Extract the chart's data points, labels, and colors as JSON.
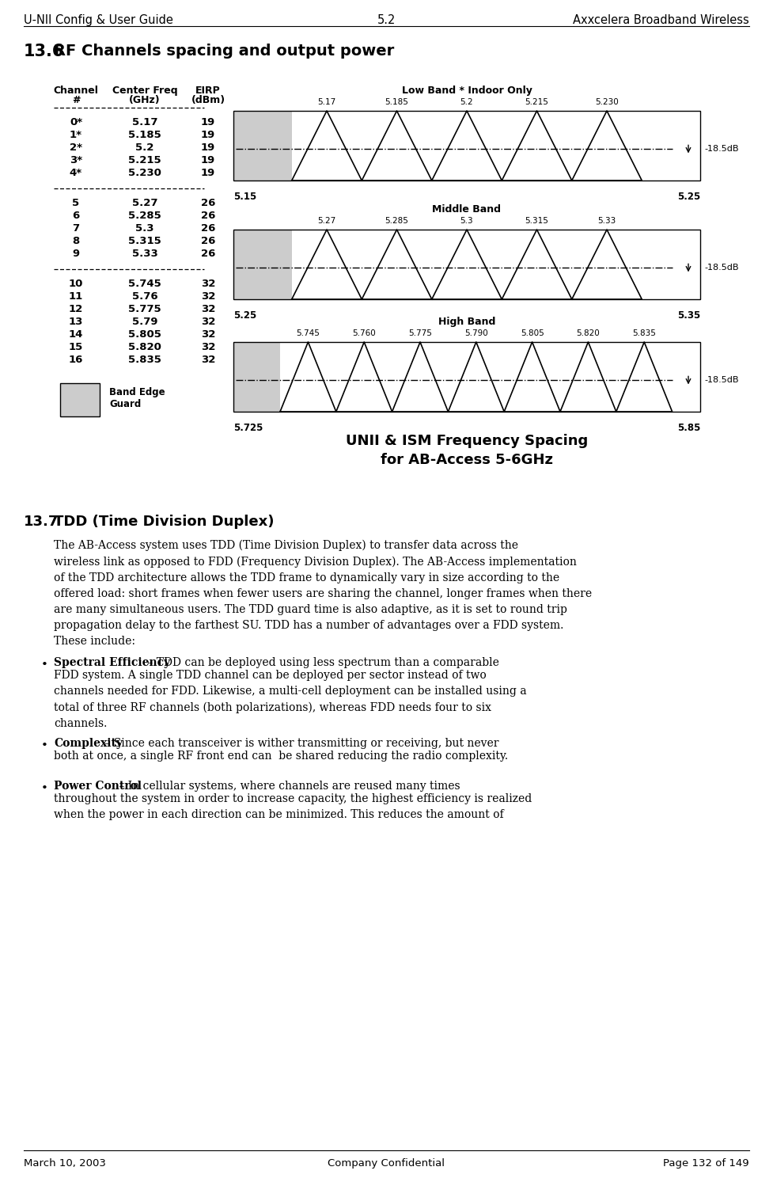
{
  "header_left": "U-NII Config & User Guide",
  "header_center": "5.2",
  "header_right": "Axxcelera Broadband Wireless",
  "section_title": "13.6 RF Channels spacing and output power",
  "table_data": [
    [
      "0*",
      "5.17",
      "19"
    ],
    [
      "1*",
      "5.185",
      "19"
    ],
    [
      "2*",
      "5.2",
      "19"
    ],
    [
      "3*",
      "5.215",
      "19"
    ],
    [
      "4*",
      "5.230",
      "19"
    ],
    [
      "5",
      "5.27",
      "26"
    ],
    [
      "6",
      "5.285",
      "26"
    ],
    [
      "7",
      "5.3",
      "26"
    ],
    [
      "8",
      "5.315",
      "26"
    ],
    [
      "9",
      "5.33",
      "26"
    ],
    [
      "10",
      "5.745",
      "32"
    ],
    [
      "11",
      "5.76",
      "32"
    ],
    [
      "12",
      "5.775",
      "32"
    ],
    [
      "13",
      "5.79",
      "32"
    ],
    [
      "14",
      "5.805",
      "32"
    ],
    [
      "15",
      "5.820",
      "32"
    ],
    [
      "16",
      "5.835",
      "32"
    ]
  ],
  "diagram_title": "UNII & ISM Frequency Spacing\nfor AB-Access 5-6GHz",
  "low_band_label": "Low Band * Indoor Only",
  "middle_band_label": "Middle Band",
  "high_band_label": "High Band",
  "low_band_freqs": [
    "5.17",
    "5.185",
    "5.2",
    "5.215",
    "5.230"
  ],
  "low_band_x_left": "5.15",
  "low_band_x_right": "5.25",
  "mid_band_freqs": [
    "5.27",
    "5.285",
    "5.3",
    "5.315",
    "5.33"
  ],
  "mid_band_x_left": "5.25",
  "mid_band_x_right": "5.35",
  "high_band_freqs": [
    "5.745",
    "5.760",
    "5.775",
    "5.790",
    "5.805",
    "5.820",
    "5.835"
  ],
  "high_band_x_left": "5.725",
  "high_band_x_right": "5.850",
  "eirp_label": "-18.5dB",
  "band_edge_guard_label": "Band Edge\nGuard",
  "section_13_7_title": "13.7 TDD (Time Division Duplex)",
  "section_13_7_text": "The AB-Access system uses TDD (Time Division Duplex) to transfer data across the\nwireless link as opposed to FDD (Frequency Division Duplex). The AB-Access implementation\nof the TDD architecture allows the TDD frame to dynamically vary in size according to the\noffered load: short frames when fewer users are sharing the channel, longer frames when there\nare many simultaneous users. The TDD guard time is also adaptive, as it is set to round trip\npropagation delay to the farthest SU. TDD has a number of advantages over a FDD system.\nThese include:",
  "bullet_1_bold": "Spectral Efficiency",
  "bullet_1_text": " – TDD can be deployed using less spectrum than a comparable\nFDD system. A single TDD channel can be deployed per sector instead of two\nchannels needed for FDD. Likewise, a multi-cell deployment can be installed using a\ntotal of three RF channels (both polarizations), whereas FDD needs four to six\nchannels.",
  "bullet_2_bold": "Complexity",
  "bullet_2_text": " – Since each transceiver is wither transmitting or receiving, but never\nboth at once, a single RF front end can  be shared reducing the radio complexity.",
  "bullet_3_bold": "Power Control",
  "bullet_3_text": " – In cellular systems, where channels are reused many times\nthroughout the system in order to increase capacity, the highest efficiency is realized\nwhen the power in each direction can be minimized. This reduces the amount of",
  "footer_left": "March 10, 2003",
  "footer_center": "Company Confidential",
  "footer_right": "Page 132 of 149"
}
